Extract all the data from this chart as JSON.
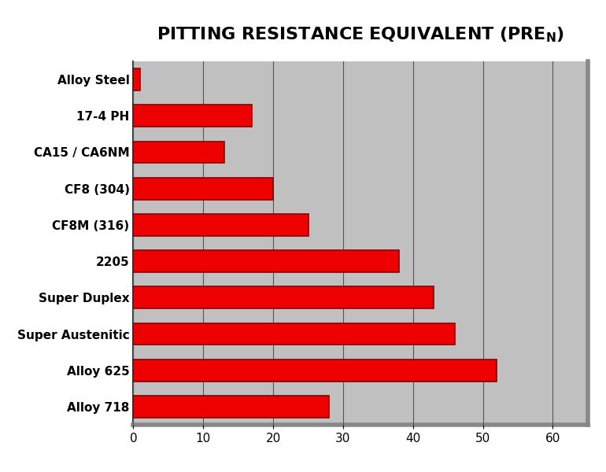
{
  "categories": [
    "Alloy Steel",
    "17-4 PH",
    "CA15 / CA6NM",
    "CF8 (304)",
    "CF8M (316)",
    "2205",
    "Super Duplex",
    "Super Austenitic",
    "Alloy 625",
    "Alloy 718"
  ],
  "values": [
    1,
    17,
    13,
    20,
    25,
    38,
    43,
    46,
    52,
    28
  ],
  "bar_color": "#ee0000",
  "bar_edge_color": "#880000",
  "plot_bg_color": "#c0c0c0",
  "fig_bg_color": "#ffffff",
  "xlim": [
    0,
    65
  ],
  "xticks": [
    0,
    10,
    20,
    30,
    40,
    50,
    60
  ],
  "grid_color": "#555555",
  "bar_height": 0.6,
  "title_fontsize": 16,
  "tick_fontsize": 11,
  "label_fontsize": 11,
  "shadow_color": "#888888",
  "border_color": "#333333"
}
